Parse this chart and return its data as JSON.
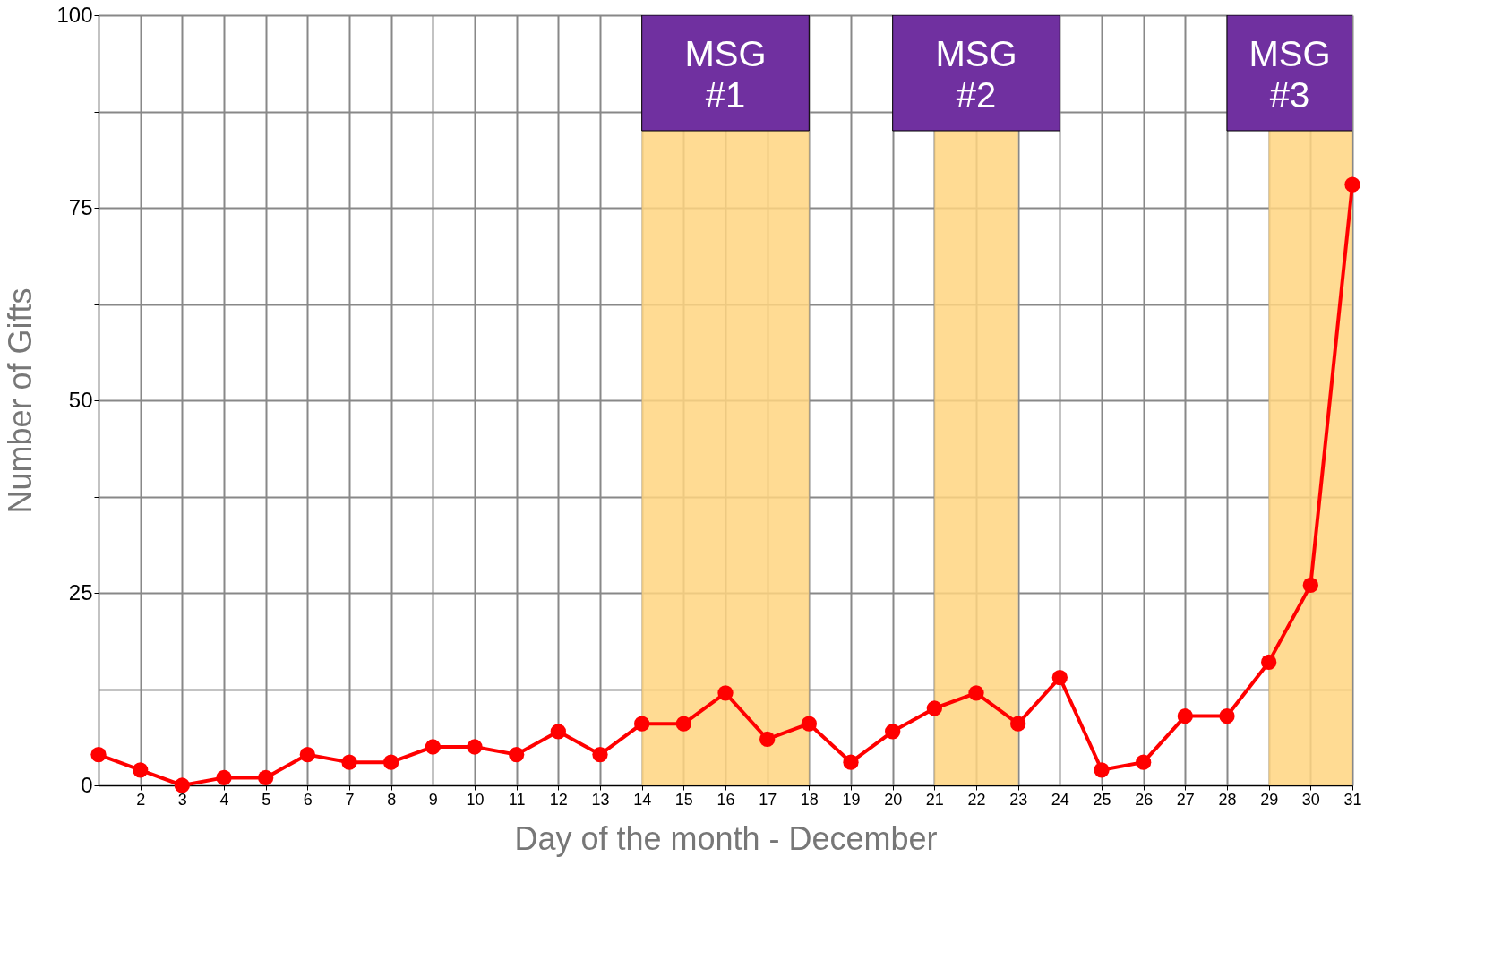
{
  "chart_data": {
    "type": "line",
    "xlabel": "Day of the month - December",
    "ylabel": "Number of Gifts",
    "x": [
      1,
      2,
      3,
      4,
      5,
      6,
      7,
      8,
      9,
      10,
      11,
      12,
      13,
      14,
      15,
      16,
      17,
      18,
      19,
      20,
      21,
      22,
      23,
      24,
      25,
      26,
      27,
      28,
      29,
      30,
      31
    ],
    "series": [
      {
        "color": "#ff0000",
        "values": [
          4,
          2,
          0,
          1,
          1,
          4,
          3,
          3,
          5,
          5,
          4,
          7,
          4,
          8,
          8,
          12,
          6,
          8,
          3,
          7,
          10,
          12,
          8,
          14,
          2,
          3,
          9,
          9,
          16,
          26,
          78
        ]
      }
    ],
    "xlim": [
      1,
      31
    ],
    "xticks": [
      {
        "value": 1,
        "label": null
      },
      2,
      3,
      4,
      5,
      6,
      7,
      8,
      9,
      10,
      11,
      12,
      13,
      14,
      15,
      16,
      17,
      18,
      19,
      20,
      21,
      22,
      23,
      24,
      25,
      26,
      27,
      28,
      29,
      30,
      31
    ],
    "ylim": [
      0,
      100
    ],
    "yticks": [
      0,
      {
        "value": 12.5,
        "label": null
      },
      25,
      {
        "value": 37.5,
        "label": null
      },
      50,
      {
        "value": 62.5,
        "label": null
      },
      75,
      {
        "value": 87.5,
        "label": null
      },
      100
    ],
    "bands": [
      {
        "axis": "x",
        "from": 14,
        "to": 18,
        "label": "MSG #1",
        "color": "#ffd580"
      },
      {
        "axis": "x",
        "from": 21,
        "to": 23,
        "label": "MSG #2",
        "color": "#ffd580"
      },
      {
        "axis": "x",
        "from": 29,
        "to": 31,
        "label": "MSG #3",
        "color": "#ffd580"
      }
    ],
    "grid": true,
    "marker": "circle",
    "line_style": "solid"
  }
}
